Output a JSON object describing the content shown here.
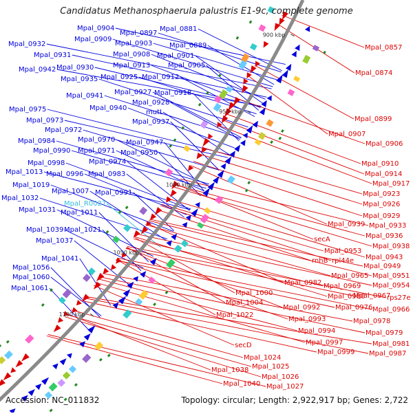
{
  "title": "Candidatus Methanosphaerula palustris E1-9c, complete genome",
  "footer": {
    "accession": "Accession: NC_011832",
    "summary": "Topology: circular; Length: 2,922,917 bp; Genes: 2,722"
  },
  "colors": {
    "backbone": "#8a8a8a",
    "plus_strand": "#0000dd",
    "minus_strand": "#dd0000",
    "rna_label": "#33bbdd",
    "tick_text": "#333333"
  },
  "ticks": [
    {
      "label": "900 kbp"
    },
    {
      "label": "950 kbp"
    },
    {
      "label": "1000 kbp"
    },
    {
      "label": "1050 kbp"
    },
    {
      "label": "1100 kbp"
    }
  ],
  "plus_labels": [
    {
      "text": "Mpal_0904"
    },
    {
      "text": "Mpal_0897"
    },
    {
      "text": "Mpal_0881"
    },
    {
      "text": "Mpal_0932"
    },
    {
      "text": "Mpal_0909"
    },
    {
      "text": "Mpal_0903"
    },
    {
      "text": "Mpal_0889"
    },
    {
      "text": "Mpal_0931"
    },
    {
      "text": "Mpal_0908"
    },
    {
      "text": "Mpal_0901"
    },
    {
      "text": "Mpal_0942"
    },
    {
      "text": "Mpal_0930"
    },
    {
      "text": "Mpal_0913"
    },
    {
      "text": "Mpal_0905"
    },
    {
      "text": "Mpal_0935"
    },
    {
      "text": "Mpal_0925"
    },
    {
      "text": "Mpal_0912"
    },
    {
      "text": "Mpal_0941"
    },
    {
      "text": "Mpal_0927"
    },
    {
      "text": "Mpal_0918"
    },
    {
      "text": "Mpal_0928"
    },
    {
      "text": "Mpal_0940"
    },
    {
      "text": "mutL"
    },
    {
      "text": "Mpal_0975"
    },
    {
      "text": "Mpal_0937"
    },
    {
      "text": "Mpal_0973"
    },
    {
      "text": "Mpal_0972"
    },
    {
      "text": "Mpal_0984"
    },
    {
      "text": "Mpal_0970"
    },
    {
      "text": "Mpal_0947"
    },
    {
      "text": "Mpal_0990"
    },
    {
      "text": "Mpal_0971"
    },
    {
      "text": "Mpal_0950"
    },
    {
      "text": "Mpal_0998"
    },
    {
      "text": "Mpal_0974"
    },
    {
      "text": "Mpal_1013"
    },
    {
      "text": "Mpal_0996"
    },
    {
      "text": "Mpal_0983"
    },
    {
      "text": "Mpal_1019"
    },
    {
      "text": "Mpal_1007"
    },
    {
      "text": "Mpal_0991"
    },
    {
      "text": "Mpal_1032"
    },
    {
      "text": "Mpal_R0027",
      "rna": true
    },
    {
      "text": "Mpal_1031"
    },
    {
      "text": "Mpal_1011"
    },
    {
      "text": "Mpal_1039"
    },
    {
      "text": "Mpal_1021"
    },
    {
      "text": "Mpal_1037"
    },
    {
      "text": "Mpal_1041"
    },
    {
      "text": "Mpal_1056"
    },
    {
      "text": "Mpal_1060"
    },
    {
      "text": "Mpal_1061"
    }
  ],
  "minus_labels": [
    {
      "text": "Mpal_0857"
    },
    {
      "text": "Mpal_0874"
    },
    {
      "text": "Mpal_0899"
    },
    {
      "text": "Mpal_0907"
    },
    {
      "text": "Mpal_0906"
    },
    {
      "text": "Mpal_0910"
    },
    {
      "text": "Mpal_0914"
    },
    {
      "text": "Mpal_0917"
    },
    {
      "text": "Mpal_0923"
    },
    {
      "text": "Mpal_0926"
    },
    {
      "text": "Mpal_0929"
    },
    {
      "text": "Mpal_0939"
    },
    {
      "text": "Mpal_0933"
    },
    {
      "text": "Mpal_0936"
    },
    {
      "text": "secA"
    },
    {
      "text": "Mpal_0938"
    },
    {
      "text": "Mpal_0953"
    },
    {
      "text": "rnhB"
    },
    {
      "text": "rpl44e"
    },
    {
      "text": "Mpal_0943"
    },
    {
      "text": "Mpal_0949"
    },
    {
      "text": "Mpal_0965"
    },
    {
      "text": "Mpal_0951"
    },
    {
      "text": "Mpal_0982"
    },
    {
      "text": "Mpal_0969"
    },
    {
      "text": "Mpal_0954"
    },
    {
      "text": "Mpal_1000"
    },
    {
      "text": "Mpal_0980"
    },
    {
      "text": "Mpal_0967"
    },
    {
      "text": "rps27e"
    },
    {
      "text": "Mpal_1004"
    },
    {
      "text": "Mpal_0992"
    },
    {
      "text": "Mpal_0976"
    },
    {
      "text": "Mpal_0966"
    },
    {
      "text": "Mpal_1022"
    },
    {
      "text": "Mpal_0993"
    },
    {
      "text": "Mpal_0978"
    },
    {
      "text": "Mpal_0994"
    },
    {
      "text": "Mpal_0979"
    },
    {
      "text": "Mpal_0997"
    },
    {
      "text": "Mpal_0981"
    },
    {
      "text": "Mpal_0999"
    },
    {
      "text": "Mpal_0987"
    },
    {
      "text": "secD"
    },
    {
      "text": "Mpal_1024"
    },
    {
      "text": "Mpal_1025"
    },
    {
      "text": "Mpal_1038"
    },
    {
      "text": "Mpal_1026"
    },
    {
      "text": "Mpal_1040"
    },
    {
      "text": "Mpal_1027"
    }
  ]
}
